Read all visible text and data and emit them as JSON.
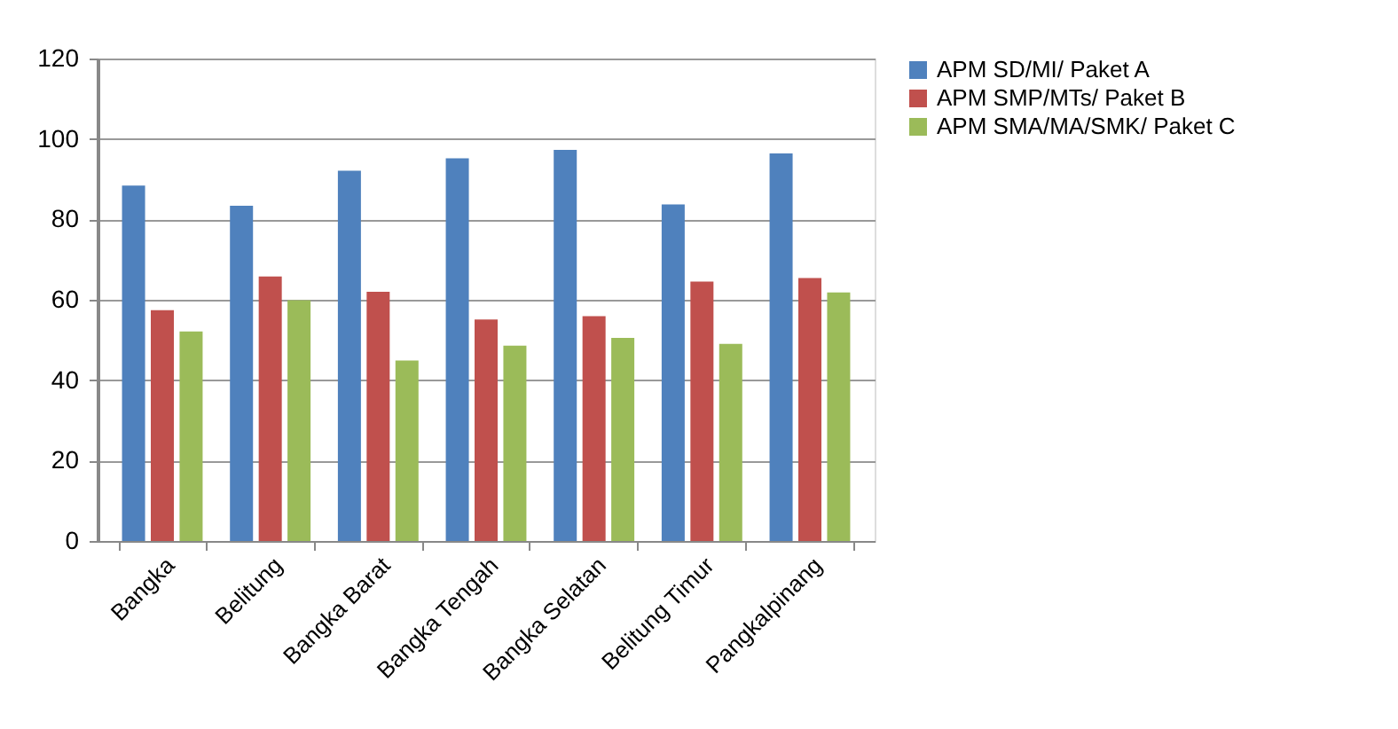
{
  "chart_data": {
    "type": "bar",
    "categories": [
      "Bangka",
      "Belitung",
      "Bangka Barat",
      "Bangka Tengah",
      "Bangka Selatan",
      "Belitung Timur",
      "Pangkalpinang"
    ],
    "series": [
      {
        "name": "APM SD/MI/ Paket A",
        "color": "#4f81bd",
        "values": [
          88.4,
          83.4,
          92.1,
          95.2,
          97.3,
          83.7,
          96.4
        ]
      },
      {
        "name": "APM SMP/MTs/ Paket B",
        "color": "#c0504d",
        "values": [
          57.4,
          65.8,
          62.0,
          55.1,
          55.9,
          64.5,
          65.4
        ]
      },
      {
        "name": "APM SMA/MA/SMK/ Paket C",
        "color": "#9bbb59",
        "values": [
          52.1,
          59.9,
          44.9,
          48.6,
          50.5,
          49.0,
          61.8
        ]
      }
    ],
    "ylim": [
      0,
      120
    ],
    "yticks": [
      0,
      20,
      40,
      60,
      80,
      100,
      120
    ],
    "grid": "y",
    "legend": "right"
  }
}
